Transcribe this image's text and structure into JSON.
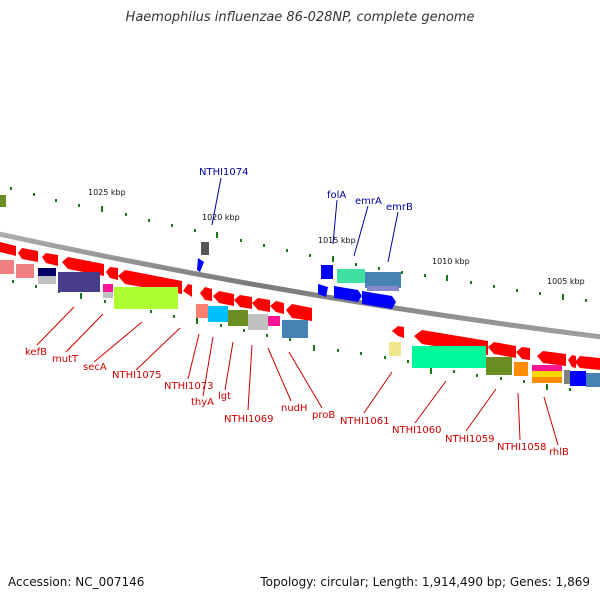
{
  "title": "Haemophilus influenzae 86-028NP, complete genome",
  "footer": {
    "accession": "Accession: NC_007146",
    "summary": "Topology: circular; Length: 1,914,490 bp; Genes: 1,869"
  },
  "scale_labels": [
    "1025 kbp",
    "1020 kbp",
    "1015 kbp",
    "1010 kbp",
    "1005 kbp"
  ],
  "forward_labels": [
    "NTHI1074",
    "folA",
    "emrA",
    "emrB"
  ],
  "reverse_labels": [
    "kefB",
    "mutT",
    "secA",
    "NTHI1075",
    "NTHI1073",
    "thyA",
    "lgt",
    "NTHI1069",
    "nudH",
    "proB",
    "NTHI1061",
    "NTHI1060",
    "NTHI1059",
    "NTHI1058",
    "rhlB"
  ],
  "colors": {
    "reverse_strand": "#ff0000",
    "forward_strand": "#0000ff",
    "backbone": "#808080",
    "tick": "#1a7a1a",
    "label_reverse": "#cc0000",
    "label_forward": "#000099"
  }
}
